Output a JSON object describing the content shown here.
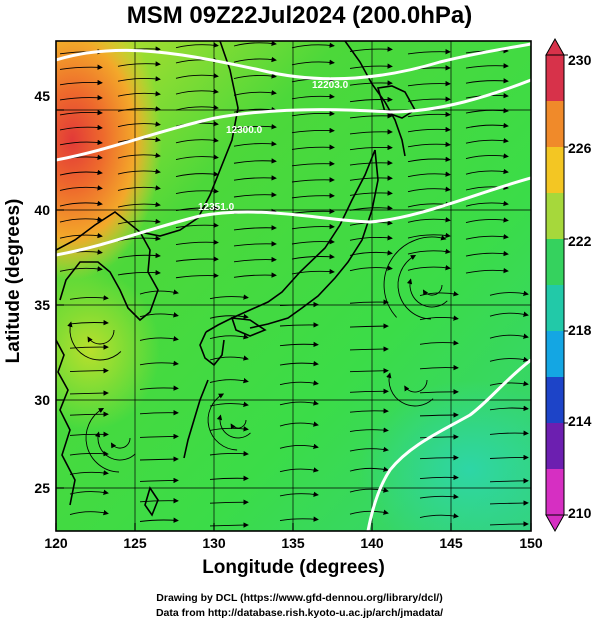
{
  "title": "MSM 09Z22Jul2024 (200.0hPa)",
  "axes": {
    "x_label": "Longitude (degrees)",
    "y_label": "Latitude  (degrees)",
    "x_ticks": [
      "120",
      "125",
      "130",
      "135",
      "140",
      "145",
      "150"
    ],
    "y_ticks": [
      "25",
      "30",
      "35",
      "40",
      "45"
    ]
  },
  "colorbar": {
    "ticks": [
      "230",
      "226",
      "222",
      "218",
      "214",
      "210"
    ],
    "colors": [
      "#d7324a",
      "#f08a2a",
      "#f3c623",
      "#a6d83b",
      "#35d25e",
      "#22c9a8",
      "#14a6e3",
      "#1d44c8",
      "#6c1fb0",
      "#d62fc2"
    ]
  },
  "contour_labels": [
    "12203.0",
    "12300.0",
    "12351.0"
  ],
  "credits": {
    "line1": "Drawing by DCL (https://www.gfd-dennou.org/library/dcl/)",
    "line2": "Data from http://database.rish.kyoto-u.ac.jp/arch/jmadata/"
  }
}
